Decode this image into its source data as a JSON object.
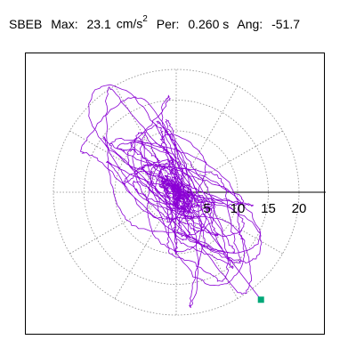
{
  "header": {
    "station": "SBEB",
    "max_label": "Max:",
    "max_value": "23.1",
    "max_unit": "cm/s",
    "max_unit_exp": "2",
    "per_label": "Per:",
    "per_value": "0.260 s",
    "ang_label": "Ang:",
    "ang_value": "-51.7"
  },
  "chart_data": {
    "type": "polar",
    "title": "SBEB  Max: 23.1 cm/s2  Per: 0.260 s  Ang: -51.7",
    "radial_ticks": [
      "5",
      "10",
      "15",
      "20"
    ],
    "radial_tick_values": [
      5,
      10,
      15,
      20
    ],
    "rings": [
      5,
      10,
      15,
      20
    ],
    "grid": true,
    "spoke_angles_deg": [
      0,
      30,
      60,
      90,
      120,
      150,
      180,
      210,
      240,
      270,
      300,
      330
    ],
    "max_amplitude": 23.1,
    "peak_angle_deg": -51.7,
    "peak_marker": {
      "x": 13.8,
      "y": -17.5
    },
    "trace_color": "#8a00d4",
    "marker_color": "#00a878"
  }
}
